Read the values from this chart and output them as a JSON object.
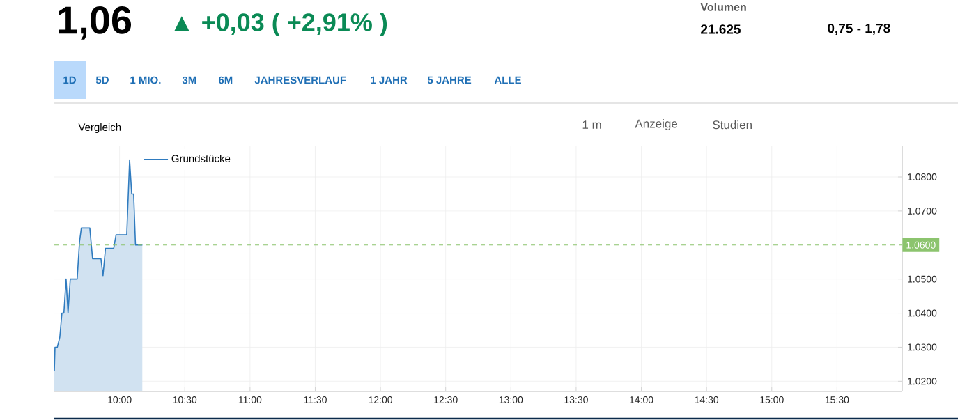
{
  "chart_data": {
    "type": "area",
    "title": "1,06",
    "subtitle": "▲ +0,03 ( +2,91% )",
    "annotations": [
      "Volumen",
      "21.625",
      "0,75 - 1,78",
      "1D",
      "5D",
      "1 MIO.",
      "3M",
      "6M",
      "JAHRESVERLAUF",
      "1 JAHR",
      "5 JAHRE",
      "ALLE",
      "Vergleich",
      "1 m",
      "Anzeige",
      "Studien"
    ],
    "series": [
      {
        "name": "Grundstücke",
        "color": "#2f7bbf",
        "x": [
          9.5,
          9.505,
          9.523,
          9.542,
          9.558,
          9.573,
          9.59,
          9.605,
          9.622,
          9.675,
          9.693,
          9.707,
          9.772,
          9.793,
          9.857,
          9.873,
          9.892,
          9.955,
          9.973,
          10.055,
          10.077,
          10.093,
          10.108,
          10.122,
          10.175
        ],
        "values": [
          1.023,
          1.03,
          1.03,
          1.033,
          1.04,
          1.04,
          1.05,
          1.04,
          1.05,
          1.05,
          1.061,
          1.065,
          1.065,
          1.056,
          1.056,
          1.051,
          1.059,
          1.059,
          1.063,
          1.063,
          1.085,
          1.075,
          1.075,
          1.06,
          1.06
        ]
      }
    ],
    "xlim": [
      9.5,
      16.0
    ],
    "ylim": [
      1.017,
      1.089
    ],
    "xticks": [
      {
        "value": 10,
        "label": "10:00"
      },
      {
        "value": 10.5,
        "label": "10:30"
      },
      {
        "value": 11,
        "label": "11:00"
      },
      {
        "value": 11.5,
        "label": "11:30"
      },
      {
        "value": 12,
        "label": "12:00"
      },
      {
        "value": 12.5,
        "label": "12:30"
      },
      {
        "value": 13,
        "label": "13:00"
      },
      {
        "value": 13.5,
        "label": "13:30"
      },
      {
        "value": 14,
        "label": "14:00"
      },
      {
        "value": 14.5,
        "label": "14:30"
      },
      {
        "value": 15,
        "label": "15:00"
      },
      {
        "value": 15.5,
        "label": "15:30"
      }
    ],
    "yticks": [
      {
        "value": 1.02,
        "label": "1.0200"
      },
      {
        "value": 1.03,
        "label": "1.0300"
      },
      {
        "value": 1.04,
        "label": "1.0400"
      },
      {
        "value": 1.05,
        "label": "1.0500"
      },
      {
        "value": 1.07,
        "label": "1.0700"
      },
      {
        "value": 1.08,
        "label": "1.0800"
      }
    ],
    "ref_lines": [
      {
        "axis": "y",
        "value": 1.06,
        "label": "1.0600",
        "color": "#8cc46e",
        "line_style": "dashed"
      }
    ],
    "grid": true,
    "legend": "top left"
  }
}
